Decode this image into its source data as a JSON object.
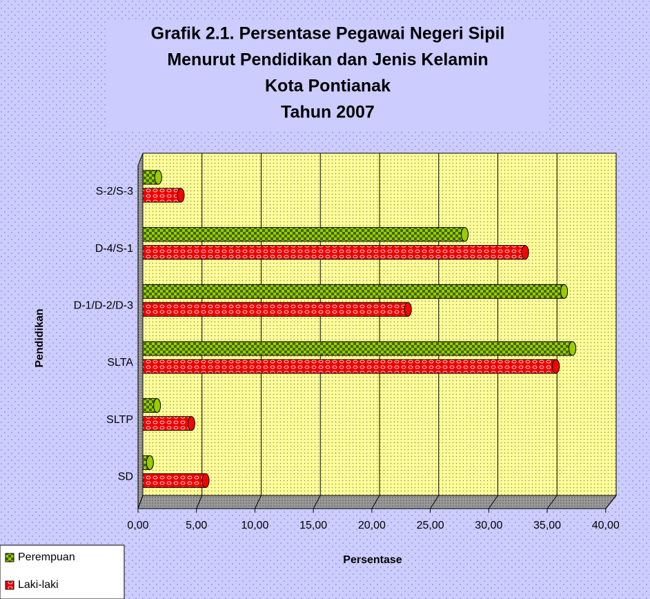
{
  "chart_data": {
    "type": "bar",
    "orientation": "horizontal",
    "title": [
      "Grafik 2.1. Persentase Pegawai Negeri Sipil",
      "Menurut Pendidikan dan Jenis Kelamin",
      "Kota Pontianak",
      "Tahun 2007"
    ],
    "x_label": "Persentase",
    "y_label": "Pendidikan",
    "categories": [
      "SD",
      "SLTP",
      "SLTA",
      "D-1/D-2/D-3",
      "D-4/S-1",
      "S-2/S-3"
    ],
    "series": [
      {
        "name": "Perempuan",
        "color": "#99cc00",
        "values": [
          0.6,
          1.2,
          36.3,
          35.6,
          27.2,
          1.3
        ]
      },
      {
        "name": "Laki-laki",
        "color": "#ff0000",
        "values": [
          5.3,
          4.1,
          34.9,
          22.4,
          32.3,
          3.2
        ]
      }
    ],
    "xlim": [
      0,
      40
    ],
    "xticks": [
      {
        "value": 0,
        "label": "0,00"
      },
      {
        "value": 5,
        "label": "5,00"
      },
      {
        "value": 10,
        "label": "10,00"
      },
      {
        "value": 15,
        "label": "15,00"
      },
      {
        "value": 20,
        "label": "20,00"
      },
      {
        "value": 25,
        "label": "25,00"
      },
      {
        "value": 30,
        "label": "30,00"
      },
      {
        "value": 35,
        "label": "35,00"
      },
      {
        "value": 40,
        "label": "40,00"
      }
    ],
    "grid": true,
    "legend": "bottom-left"
  }
}
